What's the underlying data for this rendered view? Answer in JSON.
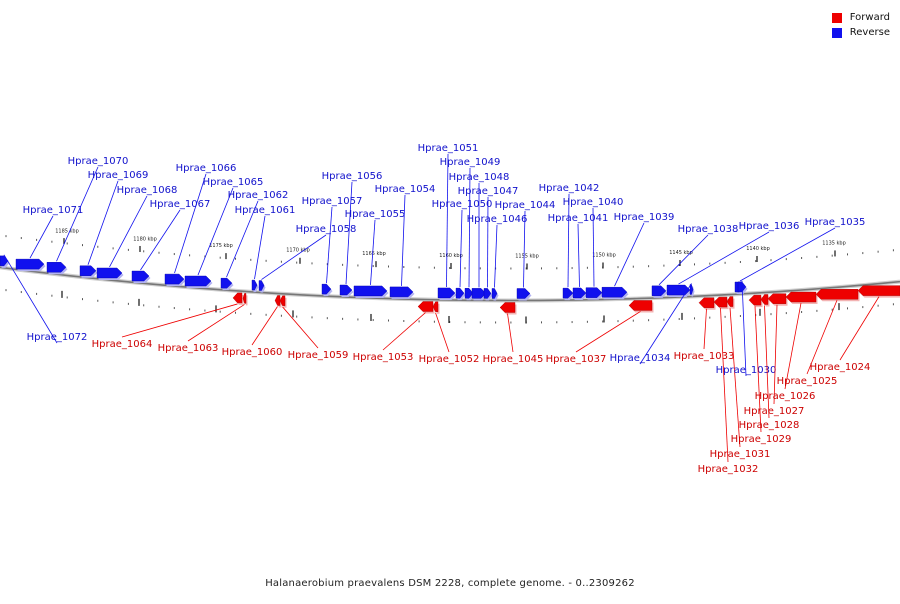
{
  "colors": {
    "forward": "#ee0000",
    "reverse": "#1111ee",
    "backbone": "#999999"
  },
  "legend": [
    {
      "label": "Forward",
      "color": "#ee0000"
    },
    {
      "label": "Reverse",
      "color": "#1111ee"
    }
  ],
  "caption": "Halanaerobium praevalens DSM 2228, complete genome. - 0..2309262",
  "scale_labels": [
    "1185 kbp",
    "1180 kbp",
    "1175 kbp",
    "1170 kbp",
    "1165 kbp",
    "1160 kbp",
    "1155 kbp",
    "1150 kbp",
    "1145 kbp",
    "1140 kbp",
    "1135 kbp"
  ],
  "genes": [
    {
      "name": "Hprae_1072",
      "strand": "reverse"
    },
    {
      "name": "Hprae_1071",
      "strand": "reverse"
    },
    {
      "name": "Hprae_1070",
      "strand": "reverse"
    },
    {
      "name": "Hprae_1069",
      "strand": "reverse"
    },
    {
      "name": "Hprae_1068",
      "strand": "reverse"
    },
    {
      "name": "Hprae_1067",
      "strand": "reverse"
    },
    {
      "name": "Hprae_1066",
      "strand": "reverse"
    },
    {
      "name": "Hprae_1065",
      "strand": "reverse"
    },
    {
      "name": "Hprae_1064",
      "strand": "forward"
    },
    {
      "name": "Hprae_1063",
      "strand": "forward"
    },
    {
      "name": "Hprae_1062",
      "strand": "reverse"
    },
    {
      "name": "Hprae_1061",
      "strand": "reverse"
    },
    {
      "name": "Hprae_1060",
      "strand": "forward"
    },
    {
      "name": "Hprae_1059",
      "strand": "forward"
    },
    {
      "name": "Hprae_1058",
      "strand": "reverse"
    },
    {
      "name": "Hprae_1057",
      "strand": "reverse"
    },
    {
      "name": "Hprae_1056",
      "strand": "reverse"
    },
    {
      "name": "Hprae_1055",
      "strand": "reverse"
    },
    {
      "name": "Hprae_1054",
      "strand": "reverse"
    },
    {
      "name": "Hprae_1053",
      "strand": "forward"
    },
    {
      "name": "Hprae_1052",
      "strand": "forward"
    },
    {
      "name": "Hprae_1051",
      "strand": "reverse"
    },
    {
      "name": "Hprae_1050",
      "strand": "reverse"
    },
    {
      "name": "Hprae_1049",
      "strand": "reverse"
    },
    {
      "name": "Hprae_1048",
      "strand": "reverse"
    },
    {
      "name": "Hprae_1047",
      "strand": "reverse"
    },
    {
      "name": "Hprae_1046",
      "strand": "reverse"
    },
    {
      "name": "Hprae_1045",
      "strand": "forward"
    },
    {
      "name": "Hprae_1044",
      "strand": "reverse"
    },
    {
      "name": "Hprae_1042",
      "strand": "reverse"
    },
    {
      "name": "Hprae_1041",
      "strand": "reverse"
    },
    {
      "name": "Hprae_1040",
      "strand": "reverse"
    },
    {
      "name": "Hprae_1039",
      "strand": "reverse"
    },
    {
      "name": "Hprae_1038",
      "strand": "reverse"
    },
    {
      "name": "Hprae_1037",
      "strand": "forward"
    },
    {
      "name": "Hprae_1036",
      "strand": "reverse"
    },
    {
      "name": "Hprae_1035",
      "strand": "reverse"
    },
    {
      "name": "Hprae_1034",
      "strand": "reverse"
    },
    {
      "name": "Hprae_1033",
      "strand": "forward"
    },
    {
      "name": "Hprae_1032",
      "strand": "forward"
    },
    {
      "name": "Hprae_1031",
      "strand": "forward"
    },
    {
      "name": "Hprae_1030",
      "strand": "reverse"
    },
    {
      "name": "Hprae_1029",
      "strand": "forward"
    },
    {
      "name": "Hprae_1028",
      "strand": "forward"
    },
    {
      "name": "Hprae_1027",
      "strand": "forward"
    },
    {
      "name": "Hprae_1026",
      "strand": "forward"
    },
    {
      "name": "Hprae_1025",
      "strand": "forward"
    },
    {
      "name": "Hprae_1024",
      "strand": "forward"
    }
  ]
}
